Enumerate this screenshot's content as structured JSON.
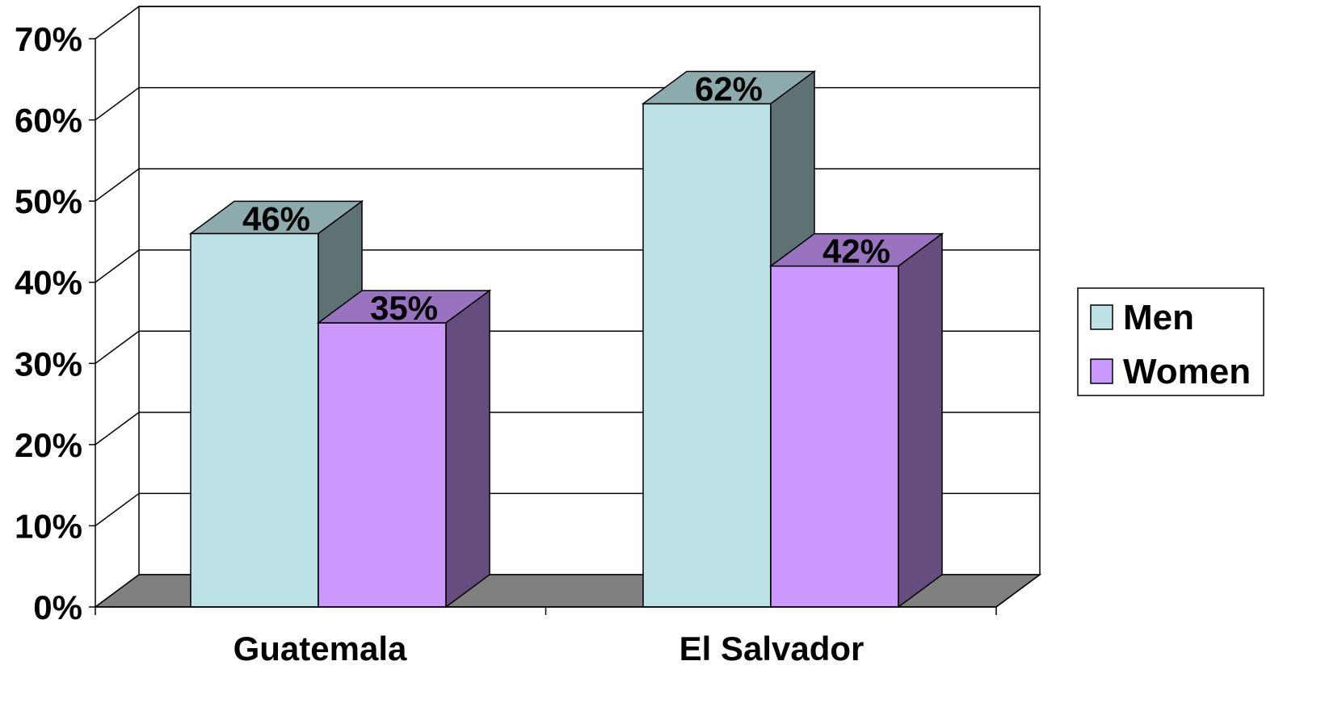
{
  "chart_data": {
    "type": "bar",
    "style": "3d-clustered-column",
    "title": "",
    "xlabel": "",
    "ylabel": "",
    "categories": [
      "Guatemala",
      "El Salvador"
    ],
    "series": [
      {
        "name": "Men",
        "values": [
          46,
          62
        ],
        "labels": [
          "46%",
          "62%"
        ],
        "color": "#bce2e6"
      },
      {
        "name": "Women",
        "values": [
          35,
          42
        ],
        "labels": [
          "35%",
          "42%"
        ],
        "color": "#cc99ff"
      }
    ],
    "ylim": [
      0,
      70
    ],
    "y_ticks": [
      0,
      10,
      20,
      30,
      40,
      50,
      60,
      70
    ],
    "y_tick_labels": [
      "0%",
      "10%",
      "20%",
      "30%",
      "40%",
      "50%",
      "60%",
      "70%"
    ],
    "grid": true,
    "legend": "right",
    "colors": {
      "floor": "#808080",
      "gridline": "#000000"
    }
  }
}
